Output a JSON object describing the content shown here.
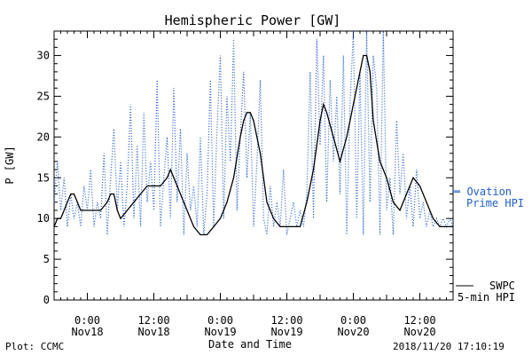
{
  "chart_data": {
    "type": "line",
    "title": "Hemispheric Power [GW]",
    "ylabel": "P [GW]",
    "xlabel": "Date and Time",
    "ylim": [
      0,
      33
    ],
    "yticks": [
      0,
      5,
      10,
      15,
      20,
      25,
      30
    ],
    "xlim": [
      -5,
      55
    ],
    "xticks": [
      {
        "x": 0,
        "time": "0:00",
        "date": "Nov18"
      },
      {
        "x": 10,
        "time": "12:00",
        "date": "Nov18"
      },
      {
        "x": 20,
        "time": "0:00",
        "date": "Nov19"
      },
      {
        "x": 30,
        "time": "12:00",
        "date": "Nov19"
      },
      {
        "x": 40,
        "time": "0:00",
        "date": "Nov20"
      },
      {
        "x": 50,
        "time": "12:00",
        "date": "Nov20"
      }
    ],
    "series": [
      {
        "name": "SWPC 5-min HPI",
        "legend_line1": "SWPC",
        "legend_line2": "5-min HPI",
        "color": "#000000",
        "style": "solid",
        "x": [
          -5,
          -4.5,
          -4,
          -3.5,
          -3,
          -2.5,
          -2,
          -1.5,
          -1,
          0,
          1,
          2,
          3,
          3.5,
          4,
          4.5,
          5,
          6,
          7,
          8,
          9,
          10,
          11,
          12,
          12.5,
          13,
          13.5,
          14,
          15,
          16,
          17,
          18,
          19,
          20,
          21,
          22,
          23,
          23.5,
          24,
          24.5,
          25,
          26,
          27,
          28,
          29,
          30,
          31,
          32,
          33,
          34,
          34.5,
          35,
          35.5,
          36,
          37,
          38,
          39,
          39.5,
          40,
          40.5,
          41,
          41.5,
          42,
          42.5,
          43,
          44,
          45,
          46,
          47,
          48,
          49,
          50,
          51,
          52,
          53,
          54,
          55
        ],
        "y": [
          9,
          10,
          10,
          11,
          12,
          13,
          13,
          12,
          11,
          11,
          11,
          11,
          12,
          13,
          13,
          11,
          10,
          11,
          12,
          13,
          14,
          14,
          14,
          15,
          16,
          15,
          14,
          13,
          11,
          9,
          8,
          8,
          9,
          10,
          12,
          15,
          20,
          22,
          23,
          23,
          22,
          18,
          12,
          10,
          9,
          9,
          9,
          9,
          12,
          16,
          19,
          22,
          24,
          23,
          20,
          17,
          20,
          22,
          24,
          26,
          28,
          30,
          30,
          28,
          22,
          17,
          15,
          12,
          11,
          13,
          15,
          14,
          12,
          10,
          9,
          9,
          9
        ]
      },
      {
        "name": "Ovation Prime HPI",
        "legend_line1": "— Ovation",
        "legend_line2": "Prime HPI",
        "color": "#1f5fd0",
        "style": "dotted",
        "x": [
          -5,
          -4.5,
          -4,
          -3.5,
          -3,
          -2.5,
          -2,
          -1.5,
          -1,
          -0.5,
          0,
          0.5,
          1,
          1.5,
          2,
          2.5,
          3,
          3.5,
          4,
          4.5,
          5,
          5.5,
          6,
          6.5,
          7,
          7.5,
          8,
          8.5,
          9,
          9.5,
          10,
          10.5,
          11,
          11.5,
          12,
          12.5,
          13,
          13.5,
          14,
          14.5,
          15,
          15.5,
          16,
          16.5,
          17,
          17.5,
          18,
          18.5,
          19,
          19.5,
          20,
          20.5,
          21,
          21.5,
          22,
          22.5,
          23,
          23.5,
          24,
          24.5,
          25,
          25.5,
          26,
          26.5,
          27,
          27.5,
          28,
          28.5,
          29,
          29.5,
          30,
          30.5,
          31,
          31.5,
          32,
          32.5,
          33,
          33.5,
          34,
          34.5,
          35,
          35.5,
          36,
          36.5,
          37,
          37.5,
          38,
          38.5,
          39,
          39.5,
          40,
          40.5,
          41,
          41.5,
          42,
          42.5,
          43,
          43.5,
          44,
          44.5,
          45,
          45.5,
          46,
          46.5,
          47,
          47.5,
          48,
          48.5,
          49,
          49.5,
          50,
          50.5,
          51,
          51.5,
          52,
          52.5,
          53,
          53.5,
          54,
          54.5,
          55
        ],
        "y": [
          12,
          17,
          11,
          15,
          9,
          13,
          10,
          12,
          9,
          14,
          11,
          16,
          9,
          12,
          10,
          18,
          8,
          15,
          21,
          11,
          17,
          9,
          14,
          24,
          10,
          19,
          9,
          23,
          12,
          17,
          11,
          27,
          9,
          15,
          20,
          10,
          26,
          12,
          21,
          8,
          18,
          11,
          14,
          9,
          20,
          8,
          13,
          27,
          9,
          21,
          30,
          10,
          25,
          17,
          32,
          11,
          20,
          28,
          15,
          23,
          9,
          17,
          27,
          10,
          8,
          14,
          9,
          12,
          9,
          16,
          8,
          10,
          12,
          9,
          11,
          9,
          13,
          28,
          10,
          32,
          19,
          30,
          12,
          27,
          17,
          25,
          13,
          30,
          8,
          24,
          33,
          10,
          28,
          8,
          33,
          12,
          30,
          26,
          8,
          33,
          11,
          15,
          8,
          22,
          13,
          18,
          10,
          14,
          9,
          16,
          10,
          12,
          9,
          11,
          9,
          10,
          9,
          10,
          9,
          10,
          9
        ]
      }
    ]
  },
  "footer": {
    "plot_label": "Plot: CCMC",
    "timestamp": "2018/11/20 17:10:19"
  }
}
